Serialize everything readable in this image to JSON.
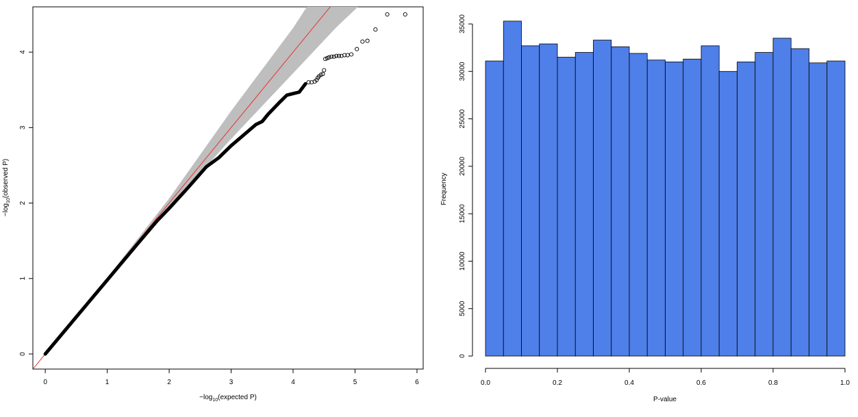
{
  "chart_data": [
    {
      "type": "scatter",
      "title": "",
      "xlabel": {
        "prefix": "−log",
        "sub": "10",
        "suffix": "(expected P)"
      },
      "ylabel": {
        "prefix": "−log",
        "sub": "10",
        "suffix": "(observed P)"
      },
      "xlim": [
        -0.2,
        6.1
      ],
      "ylim": [
        -0.2,
        4.6
      ],
      "x_ticks": [
        0,
        1,
        2,
        3,
        4,
        5,
        6
      ],
      "y_ticks": [
        0,
        1,
        2,
        3,
        4
      ],
      "grid": false,
      "legend": "none",
      "reference_line": {
        "slope": 1,
        "intercept": 0,
        "color": "#e8322f"
      },
      "confidence_band": {
        "color": "#bebebe",
        "points": [
          {
            "x": 0.0,
            "lower": 0.0,
            "upper": 0.0
          },
          {
            "x": 1.0,
            "lower": 0.99,
            "upper": 1.01
          },
          {
            "x": 2.0,
            "lower": 1.94,
            "upper": 2.06
          },
          {
            "x": 3.0,
            "lower": 2.85,
            "upper": 3.22
          },
          {
            "x": 4.0,
            "lower": 3.72,
            "upper": 4.32
          },
          {
            "x": 4.7,
            "lower": 4.33,
            "upper": 5.2
          },
          {
            "x": 5.2,
            "lower": 4.72,
            "upper": 5.9
          }
        ]
      },
      "series_curve": {
        "color": "#000000",
        "x": [
          0.0,
          0.5,
          1.0,
          1.5,
          1.8,
          2.0,
          2.3,
          2.6,
          2.8,
          3.0,
          3.2,
          3.4,
          3.5,
          3.6,
          3.8,
          3.9,
          4.0,
          4.1,
          4.2
        ],
        "y": [
          0.0,
          0.49,
          0.98,
          1.47,
          1.76,
          1.93,
          2.2,
          2.48,
          2.6,
          2.76,
          2.9,
          3.04,
          3.08,
          3.18,
          3.35,
          3.43,
          3.45,
          3.47,
          3.58
        ]
      },
      "series_points": {
        "color": "#000000",
        "x": [
          4.25,
          4.3,
          4.35,
          4.38,
          4.4,
          4.42,
          4.45,
          4.48,
          4.5,
          4.52,
          4.55,
          4.58,
          4.62,
          4.66,
          4.7,
          4.74,
          4.78,
          4.83,
          4.88,
          4.94,
          5.03,
          5.12,
          5.2,
          5.33,
          5.52,
          5.81
        ],
        "y": [
          3.6,
          3.6,
          3.61,
          3.63,
          3.66,
          3.68,
          3.7,
          3.71,
          3.76,
          3.91,
          3.92,
          3.93,
          3.94,
          3.94,
          3.95,
          3.95,
          3.95,
          3.96,
          3.96,
          3.97,
          4.04,
          4.14,
          4.15,
          4.3,
          4.5,
          4.5
        ]
      }
    },
    {
      "type": "bar",
      "title": "",
      "xlabel": "P-value",
      "ylabel": "Frequency",
      "xlim": [
        0,
        1
      ],
      "ylim": [
        0,
        35000
      ],
      "x_ticks": [
        0.0,
        0.2,
        0.4,
        0.6,
        0.8,
        1.0
      ],
      "x_tick_labels": [
        "0.0",
        "0.2",
        "0.4",
        "0.6",
        "0.8",
        "1.0"
      ],
      "y_ticks": [
        0,
        5000,
        10000,
        15000,
        20000,
        25000,
        30000,
        35000
      ],
      "y_tick_labels": [
        "0",
        "5000",
        "10000",
        "15000",
        "20000",
        "25000",
        "30000",
        "35000"
      ],
      "grid": false,
      "legend": "none",
      "bar_color": "#4f7fe8",
      "bin_width": 0.05,
      "bin_starts": [
        0.0,
        0.05,
        0.1,
        0.15,
        0.2,
        0.25,
        0.3,
        0.35,
        0.4,
        0.45,
        0.5,
        0.55,
        0.6,
        0.65,
        0.7,
        0.75,
        0.8,
        0.85,
        0.9,
        0.95
      ],
      "values": [
        31100,
        35300,
        32700,
        32900,
        31500,
        32000,
        33300,
        32600,
        31900,
        31200,
        31000,
        31300,
        32700,
        30000,
        31000,
        32000,
        33500,
        32400,
        30900,
        31100
      ]
    }
  ]
}
